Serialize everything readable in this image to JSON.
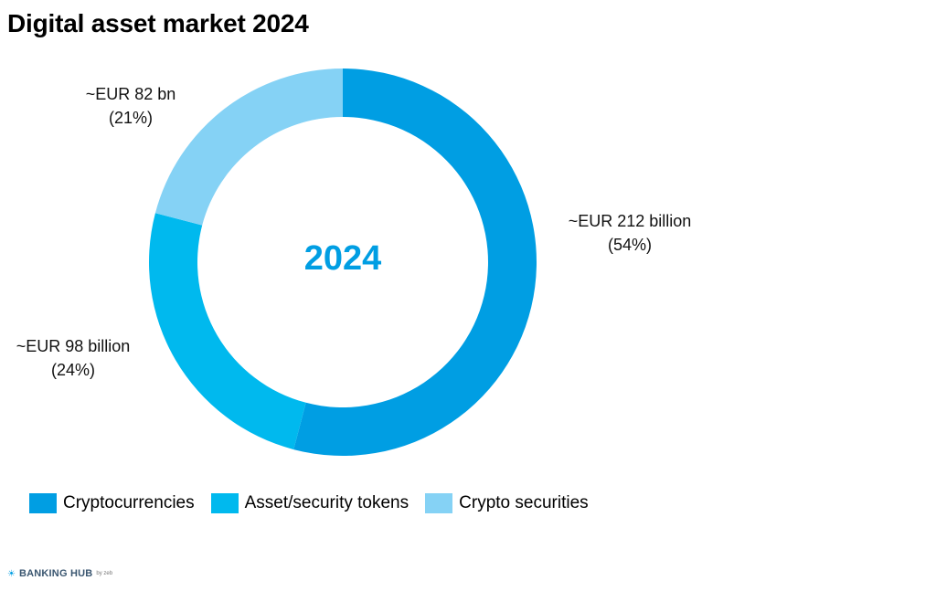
{
  "title": "Digital asset market 2024",
  "center_label": "2024",
  "labels": {
    "cryptocurrencies": {
      "value": "~EUR 212 billion",
      "percent": "(54%)"
    },
    "asset_security_tokens": {
      "value": "~EUR 98 billion",
      "percent": "(24%)"
    },
    "crypto_securities": {
      "value": "~EUR 82 bn",
      "percent": "(21%)"
    }
  },
  "legend": [
    {
      "label": "Cryptocurrencies",
      "color": "#009ee3"
    },
    {
      "label": "Asset/security tokens",
      "color": "#00b9ee"
    },
    {
      "label": "Crypto securities",
      "color": "#85d2f5"
    }
  ],
  "logo": {
    "mark": "☀",
    "main": "BANKING HUB",
    "sub": "by zeb"
  },
  "chart_data": {
    "type": "pie",
    "variant": "donut",
    "title": "Digital asset market 2024",
    "center_text": "2024",
    "categories": [
      "Cryptocurrencies",
      "Asset/security tokens",
      "Crypto securities"
    ],
    "values": [
      212,
      98,
      82
    ],
    "unit": "EUR billion",
    "percentages": [
      54,
      24,
      21
    ],
    "colors": [
      "#009ee3",
      "#00b9ee",
      "#85d2f5"
    ],
    "start_angle_deg": 0,
    "direction": "clockwise",
    "legend_position": "bottom-left"
  }
}
